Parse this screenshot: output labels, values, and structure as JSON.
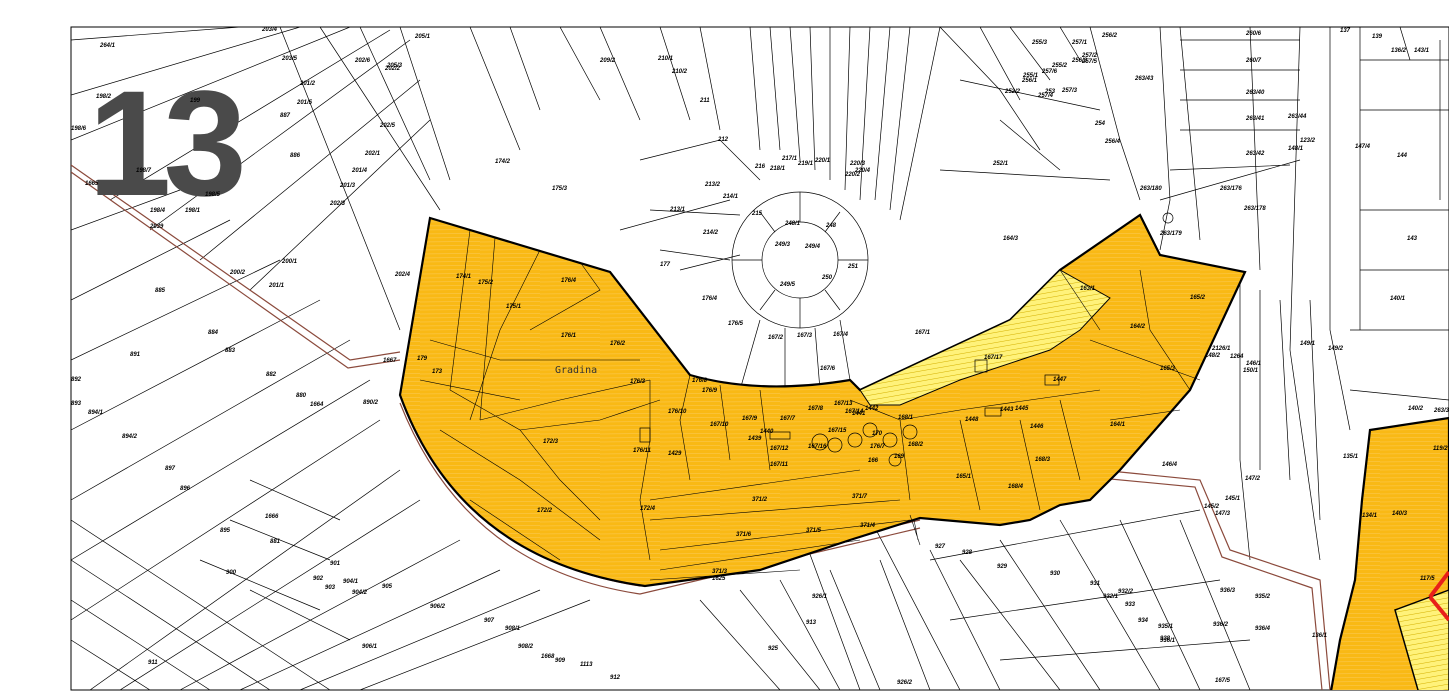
{
  "sheet": {
    "number": "13"
  },
  "place_name": "Gradina",
  "colors": {
    "parcel_fill": "#f9b915",
    "hatched_fill": "#fff27a",
    "boundary": "#000000",
    "road_edge": "#8b4a3c",
    "highlight": "#e8201a"
  },
  "parcel_labels": [
    "264/1",
    "203/4",
    "205/1",
    "203/5",
    "202/6",
    "205/3",
    "209/2",
    "210/1",
    "210/2",
    "211",
    "212",
    "216",
    "213/2",
    "214/1",
    "215",
    "213/1",
    "214/2",
    "217/1",
    "219/1",
    "220/1",
    "220/3",
    "220/4",
    "220/2",
    "218/1",
    "248/1",
    "249/3",
    "249/4",
    "248",
    "251",
    "250",
    "249/5",
    "177",
    "176/4",
    "176/5",
    "167/2",
    "167/3",
    "167/4",
    "167/1",
    "174/2",
    "175/3",
    "174/1",
    "175/2",
    "175/1",
    "176/4",
    "176/1",
    "176/2",
    "176/3",
    "179",
    "173",
    "172/3",
    "172/2",
    "172/4",
    "371/2",
    "371/7",
    "371/6",
    "371/5",
    "371/4",
    "371/3",
    "1625",
    "198/2",
    "198/6",
    "199",
    "198/7",
    "198/5",
    "198/4",
    "198/1",
    "2039",
    "1665",
    "200/2",
    "200/1",
    "201/1",
    "202/4",
    "202/5",
    "202/1",
    "201/4",
    "201/3",
    "202/3",
    "202/2",
    "201/2",
    "201/5",
    "887",
    "886",
    "885",
    "884",
    "883",
    "882",
    "880",
    "1664",
    "890/2",
    "891",
    "892",
    "893",
    "894/1",
    "894/2",
    "897",
    "896",
    "1666",
    "895",
    "881",
    "900",
    "1667",
    "901",
    "902",
    "903",
    "904/1",
    "904/2",
    "905",
    "906/1",
    "906/2",
    "907",
    "908/1",
    "908/2",
    "1668",
    "909",
    "1113",
    "912",
    "911",
    "913",
    "925",
    "926/1",
    "926/2",
    "927",
    "928",
    "929",
    "930",
    "931",
    "932/1",
    "932/2",
    "933",
    "934",
    "935/1",
    "936/1",
    "936/2",
    "936/4",
    "936/3",
    "935/2",
    "938",
    "167/5",
    "167/6",
    "167/7",
    "167/8",
    "167/9",
    "167/10",
    "167/11",
    "167/12",
    "167/13",
    "167/14",
    "167/15",
    "167/16",
    "167/17",
    "176/7",
    "176/8",
    "176/9",
    "176/10",
    "176/11",
    "1429",
    "1439",
    "1440",
    "1441",
    "1442",
    "1443",
    "1445",
    "1446",
    "1447",
    "1448",
    "166",
    "169",
    "170",
    "168/1",
    "168/2",
    "168/3",
    "168/4",
    "165/1",
    "165/2",
    "165/3",
    "164/1",
    "164/2",
    "164/3",
    "163/1",
    "252/1",
    "252/2",
    "253",
    "254",
    "256/4",
    "257/5",
    "257/6",
    "255/1",
    "255/2",
    "255/3",
    "257/1",
    "257/2",
    "257/3",
    "257/4",
    "256/1",
    "256/2",
    "256/3",
    "260/6",
    "260/7",
    "263/40",
    "263/41",
    "263/42",
    "263/43",
    "263/44",
    "263/176",
    "263/178",
    "263/180",
    "263/179",
    "2126/1",
    "1264",
    "146/1",
    "148/2",
    "149/1",
    "149/2",
    "150/1",
    "145/1",
    "145/2",
    "146/4",
    "147/2",
    "147/3",
    "147/4",
    "148/1",
    "143/1",
    "144",
    "143",
    "140/1",
    "140/2",
    "140/3",
    "134/1",
    "135/1",
    "136/1",
    "136/2",
    "137",
    "139",
    "123/2",
    "117/5",
    "119/2",
    "263/3",
    "34",
    "75/1",
    "161"
  ]
}
